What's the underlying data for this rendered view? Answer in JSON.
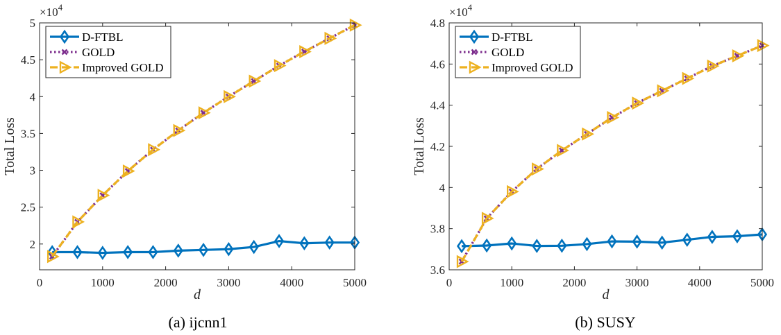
{
  "colors": {
    "dftbl": "#0072BD",
    "gold": "#7E2F8E",
    "improved": "#EDB120",
    "axis": "#262626"
  },
  "chart_data": [
    {
      "type": "line",
      "caption": "(a) ijcnn1",
      "xlabel": "d",
      "ylabel": "Total Loss",
      "multiplier": "×10",
      "multiplier_exp": "4",
      "xlim": [
        0,
        5000
      ],
      "ylim": [
        1.65,
        5.0
      ],
      "xticks": [
        0,
        1000,
        2000,
        3000,
        4000,
        5000
      ],
      "xtick_labels": [
        "0",
        "1000",
        "2000",
        "3000",
        "4000",
        "5000"
      ],
      "yticks": [
        2,
        2.5,
        3,
        3.5,
        4,
        4.5,
        5
      ],
      "ytick_labels": [
        "2",
        "2.5",
        "3",
        "3.5",
        "4",
        "4.5",
        "5"
      ],
      "grid": false,
      "legend_position": "top-left",
      "x": [
        200,
        600,
        1000,
        1400,
        1800,
        2200,
        2600,
        3000,
        3400,
        3800,
        4200,
        4600,
        5000
      ],
      "series": [
        {
          "name": "D-FTBL",
          "key": "dftbl",
          "style": "solid",
          "marker": "diamond",
          "values": [
            1.89,
            1.89,
            1.88,
            1.89,
            1.89,
            1.91,
            1.92,
            1.93,
            1.96,
            2.04,
            2.01,
            2.02,
            2.02
          ]
        },
        {
          "name": "GOLD",
          "key": "gold",
          "style": "dotted",
          "marker": "x",
          "values": [
            1.83,
            2.3,
            2.66,
            2.99,
            3.28,
            3.54,
            3.78,
            4.0,
            4.21,
            4.42,
            4.61,
            4.79,
            4.97
          ]
        },
        {
          "name": "Improved GOLD",
          "key": "improved",
          "style": "dashed",
          "marker": "triangle-right",
          "values": [
            1.83,
            2.3,
            2.66,
            2.99,
            3.28,
            3.54,
            3.78,
            4.0,
            4.21,
            4.42,
            4.61,
            4.79,
            4.97
          ]
        }
      ]
    },
    {
      "type": "line",
      "caption": "(b) SUSY",
      "xlabel": "d",
      "ylabel": "Total Loss",
      "multiplier": "×10",
      "multiplier_exp": "4",
      "xlim": [
        0,
        5000
      ],
      "ylim": [
        3.6,
        4.8
      ],
      "xticks": [
        0,
        1000,
        2000,
        3000,
        4000,
        5000
      ],
      "xtick_labels": [
        "0",
        "1000",
        "2000",
        "3000",
        "4000",
        "5000"
      ],
      "yticks": [
        3.6,
        3.8,
        4.0,
        4.2,
        4.4,
        4.6,
        4.8
      ],
      "ytick_labels": [
        "3.6",
        "3.8",
        "4",
        "4.2",
        "4.4",
        "4.6",
        "4.8"
      ],
      "grid": false,
      "legend_position": "top-left",
      "x": [
        200,
        600,
        1000,
        1400,
        1800,
        2200,
        2600,
        3000,
        3400,
        3800,
        4200,
        4600,
        5000
      ],
      "series": [
        {
          "name": "D-FTBL",
          "key": "dftbl",
          "style": "solid",
          "marker": "diamond",
          "values": [
            3.715,
            3.718,
            3.728,
            3.716,
            3.717,
            3.725,
            3.738,
            3.737,
            3.732,
            3.746,
            3.76,
            3.763,
            3.772
          ]
        },
        {
          "name": "GOLD",
          "key": "gold",
          "style": "dotted",
          "marker": "x",
          "values": [
            3.64,
            3.85,
            3.98,
            4.09,
            4.18,
            4.26,
            4.34,
            4.41,
            4.47,
            4.53,
            4.59,
            4.64,
            4.69
          ]
        },
        {
          "name": "Improved GOLD",
          "key": "improved",
          "style": "dashed",
          "marker": "triangle-right",
          "values": [
            3.64,
            3.85,
            3.98,
            4.09,
            4.18,
            4.26,
            4.34,
            4.41,
            4.47,
            4.53,
            4.59,
            4.64,
            4.69
          ]
        }
      ]
    }
  ]
}
